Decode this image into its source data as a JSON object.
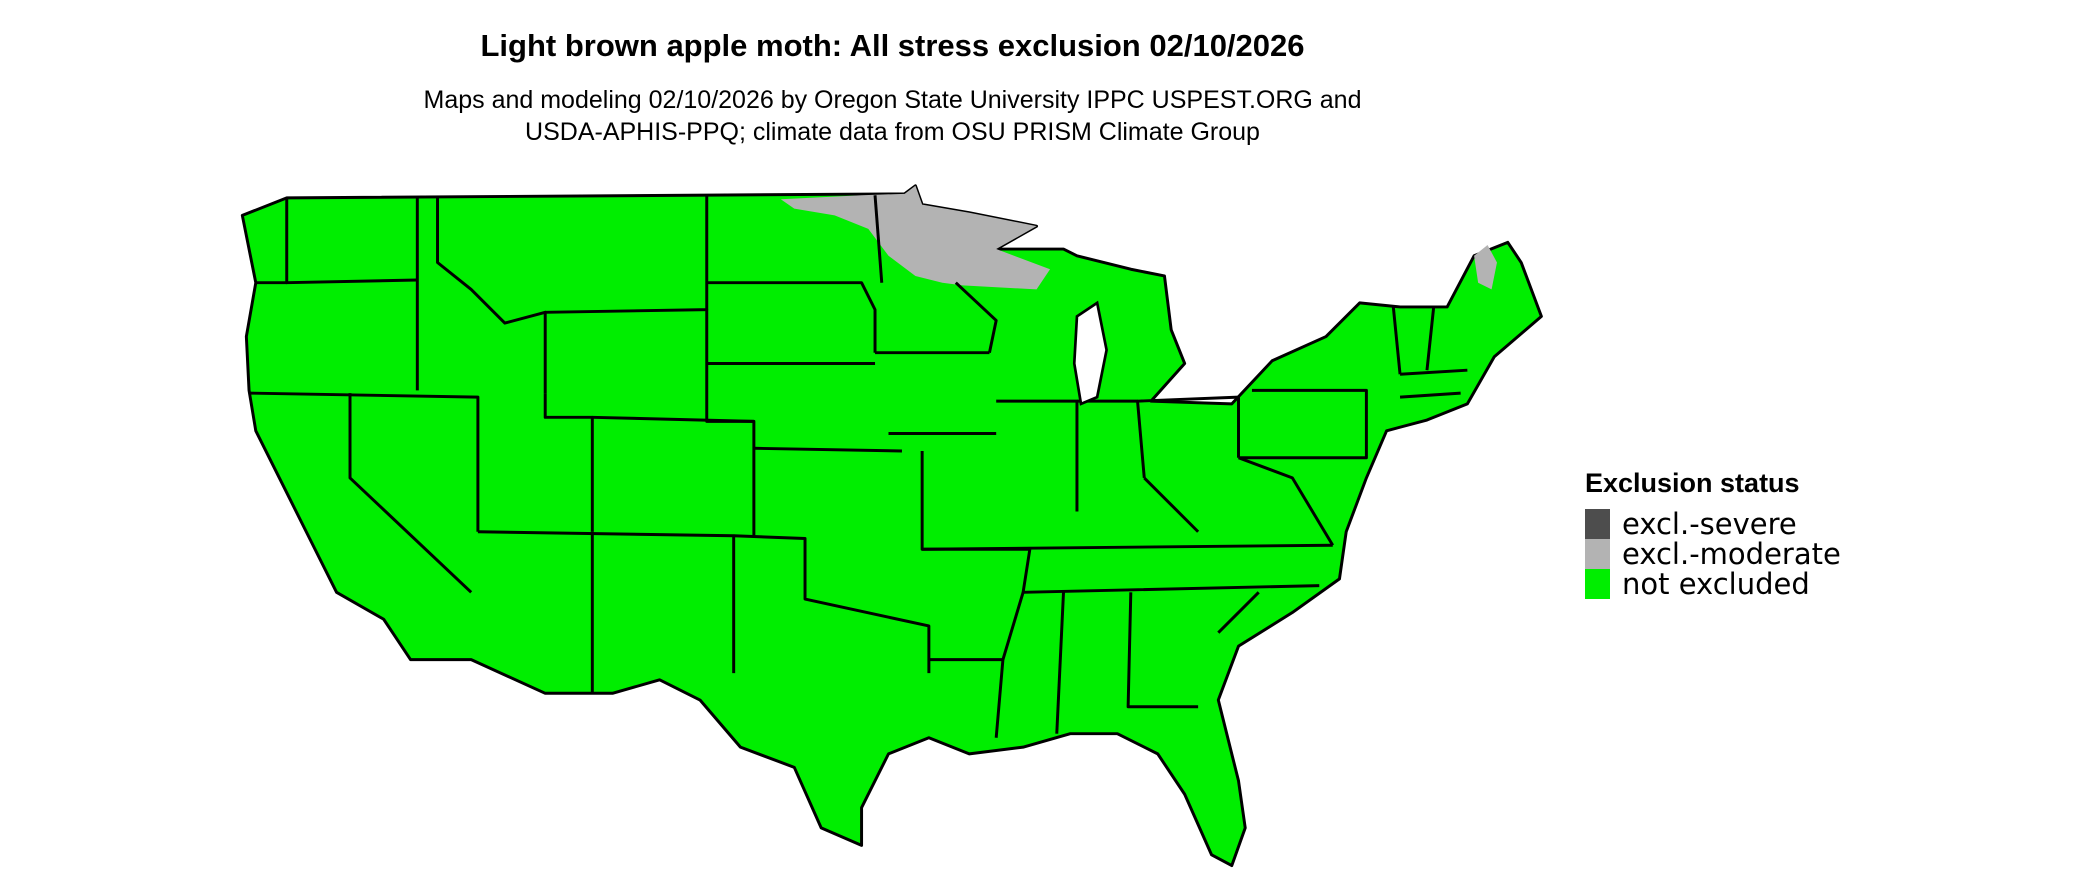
{
  "title": "Light brown apple moth: All stress exclusion 02/10/2026",
  "subtitle_line1": "Maps and modeling 02/10/2026 by Oregon State University IPPC USPEST.ORG and",
  "subtitle_line2": "USDA-APHIS-PPQ; climate data from OSU PRISM Climate Group",
  "legend": {
    "title": "Exclusion status",
    "items": [
      {
        "label": "excl.-severe",
        "color": "#4d4d4d"
      },
      {
        "label": "excl.-moderate",
        "color": "#b3b3b3"
      },
      {
        "label": "not excluded",
        "color": "#00ee00"
      }
    ]
  },
  "map": {
    "land_color": "#00ee00",
    "border_color": "#000000",
    "moderate_color": "#b3b3b3"
  }
}
